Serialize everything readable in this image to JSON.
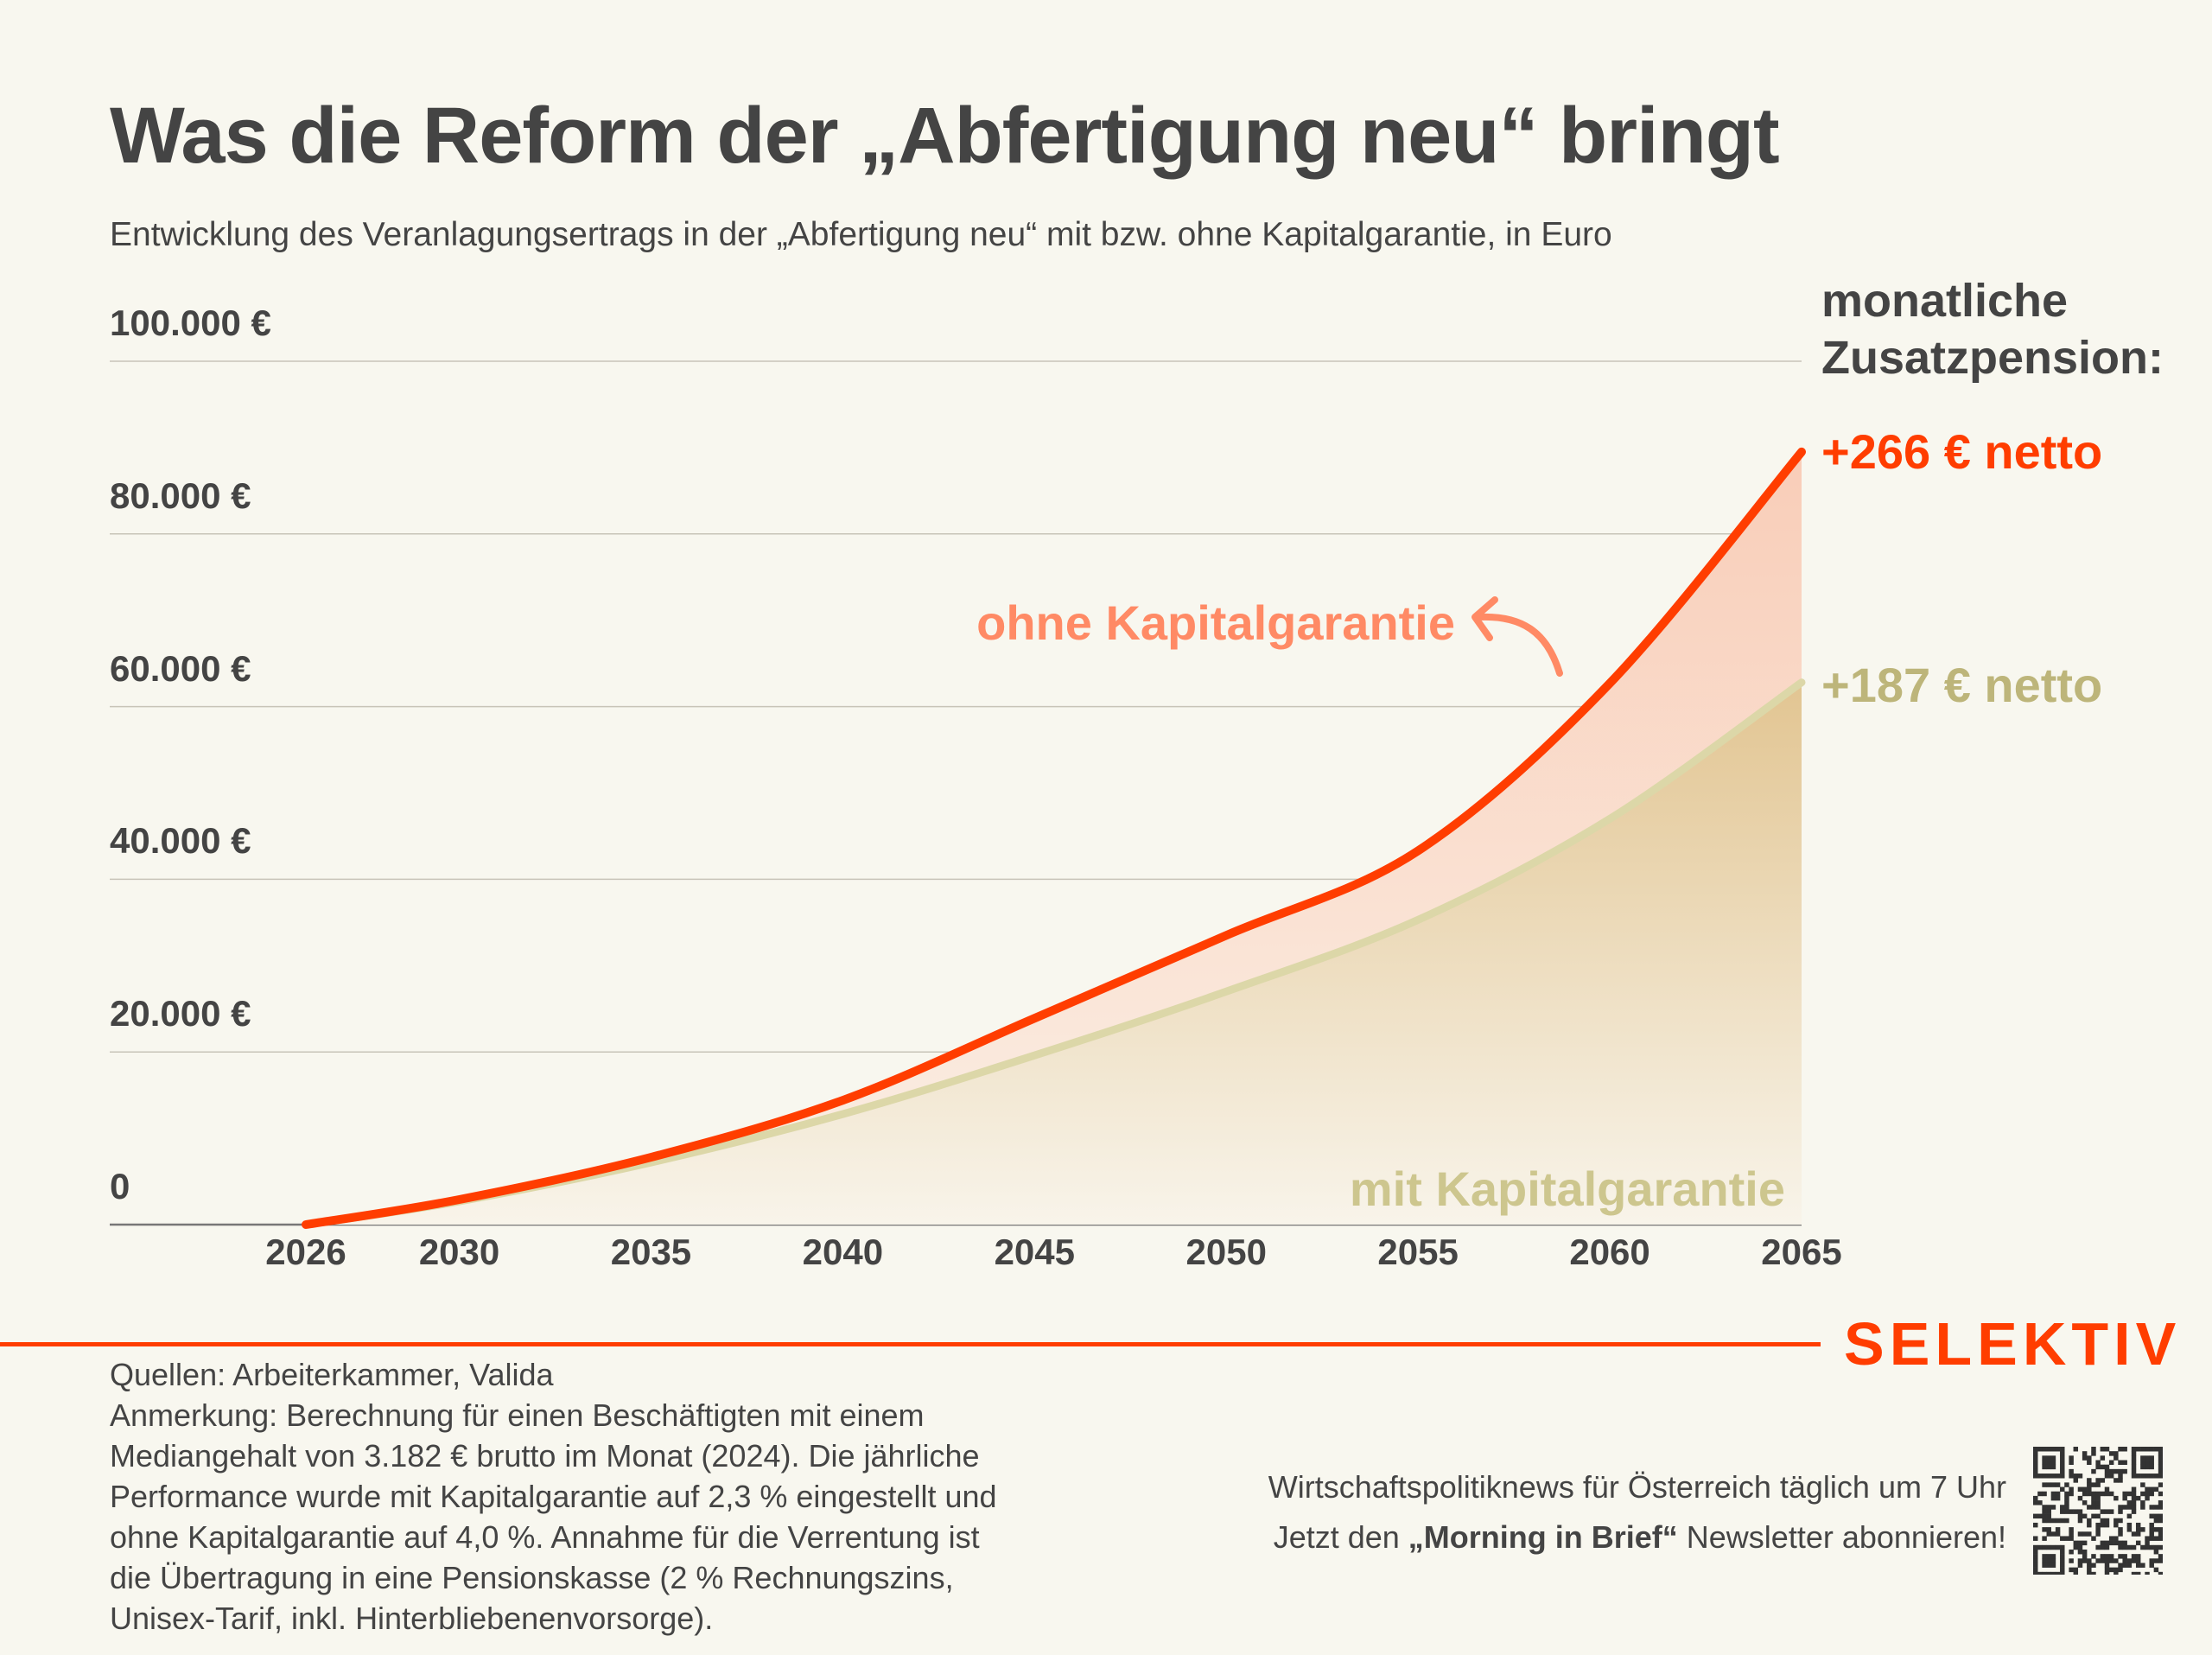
{
  "title": "Was die Reform der „Abfertigung neu“ bringt",
  "subtitle": "Entwicklung des Veranlagungsertrags in der „Abfertigung neu“ mit bzw. ohne Kapitalgarantie, in Euro",
  "colors": {
    "background": "#f8f7ef",
    "ohne": "#ff3d00",
    "ohne_label": "#ff8a65",
    "mit": "#dcd7a8",
    "mit_value": "#bdb57a",
    "mit_label": "#cdc68e",
    "text": "#444444",
    "brand": "#ff3d00"
  },
  "chart_data": {
    "type": "area",
    "title": "Was die Reform der „Abfertigung neu“ bringt",
    "x": [
      2026,
      2030,
      2035,
      2040,
      2045,
      2050,
      2055,
      2060,
      2065
    ],
    "xticks": [
      "2026",
      "2030",
      "2035",
      "2040",
      "2045",
      "2050",
      "2055",
      "2060",
      "2065"
    ],
    "yticks": [
      "0",
      "20.000 €",
      "40.000 €",
      "60.000 €",
      "80.000 €",
      "100.000 €"
    ],
    "ytick_values": [
      0,
      20000,
      40000,
      60000,
      80000,
      100000
    ],
    "xlim": [
      2026,
      2065
    ],
    "ylim": [
      0,
      100000
    ],
    "grid": true,
    "series": [
      {
        "name": "ohne Kapitalgarantie",
        "values": [
          0,
          2900,
          7800,
          14400,
          23900,
          33500,
          43300,
          62700,
          89500
        ]
      },
      {
        "name": "mit Kapitalgarantie",
        "values": [
          0,
          2700,
          7200,
          12800,
          19600,
          27000,
          35300,
          47000,
          62800
        ]
      }
    ],
    "annotations": {
      "side_heading_1": "monatliche",
      "side_heading_2": "Zusatzpension:",
      "ohne_value": "+266 € netto",
      "mit_value": "+187 € netto"
    }
  },
  "footer": {
    "lines": [
      "Quellen: Arbeiterkammer, Valida",
      "Anmerkung: Berechnung für einen Beschäftigten mit einem",
      "Mediangehalt von 3.182 € brutto im Monat (2024). Die jährliche",
      "Performance wurde mit Kapitalgarantie auf 2,3 % eingestellt und",
      "ohne Kapitalgarantie auf 4,0 %. Annahme für die Verrentung ist",
      "die Übertragung in eine Pensionskasse (2 % Rechnungszins,",
      "Unisex-Tarif, inkl. Hinterbliebenenvorsorge)."
    ],
    "brand": "SELEKTIV",
    "promo_line1": "Wirtschaftspolitiknews für Österreich täglich um 7 Uhr",
    "promo_pre": "Jetzt den ",
    "promo_bold": "„Morning in Brief“",
    "promo_post": " Newsletter abonnieren!",
    "qr_icon": "qr-code-icon"
  }
}
